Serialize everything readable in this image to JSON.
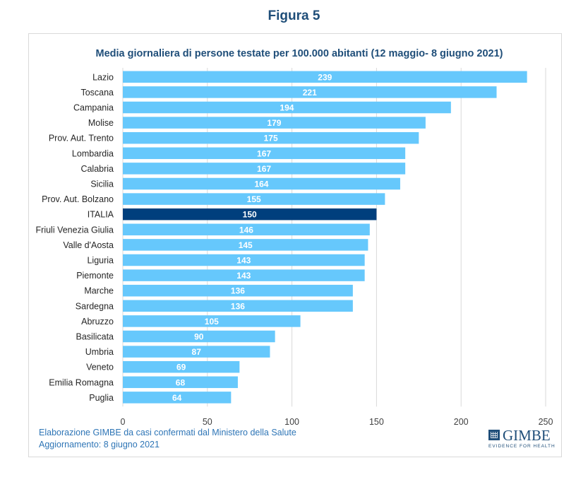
{
  "figure_label": "Figura 5",
  "chart_data": {
    "type": "bar",
    "orientation": "horizontal",
    "title": "Media giornaliera di persone testate per 100.000 abitanti (12 maggio- 8 giugno 2021)",
    "xlabel": "",
    "ylabel": "",
    "xlim": [
      0,
      250
    ],
    "x_ticks": [
      0,
      50,
      100,
      150,
      200,
      250
    ],
    "grid": true,
    "data_labels": true,
    "categories": [
      "Lazio",
      "Toscana",
      "Campania",
      "Molise",
      "Prov. Aut. Trento",
      "Lombardia",
      "Calabria",
      "Sicilia",
      "Prov. Aut. Bolzano",
      "ITALIA",
      "Friuli Venezia Giulia",
      "Valle d'Aosta",
      "Liguria",
      "Piemonte",
      "Marche",
      "Sardegna",
      "Abruzzo",
      "Basilicata",
      "Umbria",
      "Veneto",
      "Emilia Romagna",
      "Puglia"
    ],
    "values": [
      239,
      221,
      194,
      179,
      175,
      167,
      167,
      164,
      155,
      150,
      146,
      145,
      143,
      143,
      136,
      136,
      105,
      90,
      87,
      69,
      68,
      64
    ],
    "highlight_category": "ITALIA",
    "colors": {
      "bar": "#66c8fc",
      "highlight": "#003f7d",
      "title": "#1f4e79",
      "grid": "#d9d9d9"
    }
  },
  "footer": {
    "source": "Elaborazione GIMBE da casi confermati dal Ministero della Salute",
    "updated": "Aggiornamento: 8 giugno 2021"
  },
  "logo": {
    "name": "GIMBE",
    "tagline": "EVIDENCE FOR HEALTH"
  }
}
